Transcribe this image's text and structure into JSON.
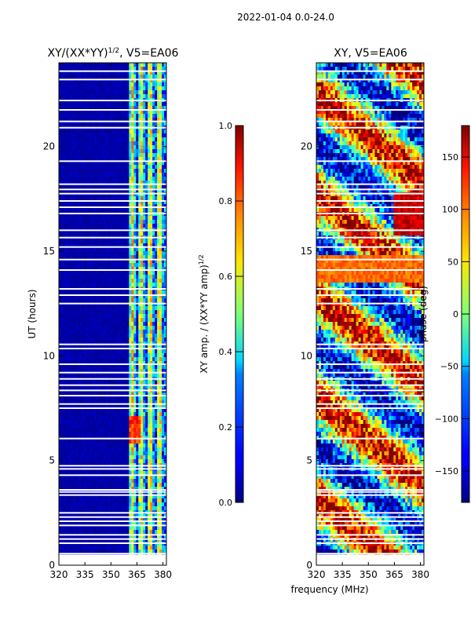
{
  "suptitle": "2022-01-04 0.0-24.0",
  "chart_data": [
    {
      "type": "heatmap",
      "title": "XY/(XX*YY)^1/2, V5=EA06",
      "title_main": "XY/(XX*YY)",
      "title_exp": "1/2",
      "title_suffix": ", V5=EA06",
      "xlabel": "",
      "ylabel": "UT (hours)",
      "xlim": [
        320,
        382
      ],
      "ylim": [
        0,
        24
      ],
      "xticks": [
        320,
        335,
        350,
        365,
        380
      ],
      "yticks": [
        0,
        5,
        10,
        15,
        20
      ],
      "colorbar": {
        "label": "XY amp. / (XX*YY amp)^1/2",
        "label_main": "XY amp. / (XX*YY amp)",
        "label_exp": "1/2",
        "range": [
          0.0,
          1.0
        ],
        "ticks": [
          "0.0",
          "0.2",
          "0.4",
          "0.6",
          "0.8",
          "1.0"
        ]
      }
    },
    {
      "type": "heatmap",
      "title": "XY, V5=EA06",
      "xlabel": "frequency (MHz)",
      "ylabel": "",
      "xlim": [
        320,
        382
      ],
      "ylim": [
        0,
        24
      ],
      "xticks": [
        320,
        335,
        350,
        365,
        380
      ],
      "yticks": [
        0,
        5,
        10,
        15,
        20
      ],
      "colorbar": {
        "label": "phase (deg)",
        "range": [
          -180,
          180
        ],
        "ticks": [
          "−150",
          "−100",
          "−50",
          "0",
          "50",
          "100",
          "150"
        ]
      }
    }
  ],
  "colors": {
    "jet_low": "#00007f",
    "jet_high": "#7f0000",
    "flag_gap": "#ffffff"
  }
}
